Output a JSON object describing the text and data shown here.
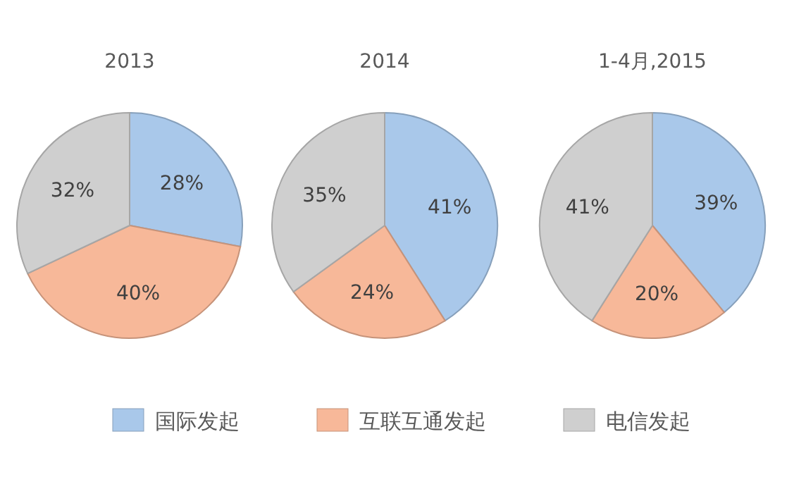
{
  "chart_data": [
    {
      "type": "pie",
      "title": "2013",
      "categories": [
        "国际发起",
        "互联互通发起",
        "电信发起"
      ],
      "values": [
        28,
        40,
        32
      ],
      "value_labels": [
        "28%",
        "40%",
        "32%"
      ],
      "colors": [
        "#a9c8ea",
        "#f7b899",
        "#cfcfcf"
      ],
      "legend": "bottom"
    },
    {
      "type": "pie",
      "title": "2014",
      "categories": [
        null,
        null,
        null
      ],
      "values": [
        41,
        24,
        35
      ],
      "value_labels": [
        "41%",
        "24%",
        "35%"
      ],
      "colors": [
        "#a9c8ea",
        "#f7b899",
        "#cfcfcf"
      ]
    },
    {
      "type": "pie",
      "title": "1-4月,2015",
      "categories": [
        null,
        null,
        null
      ],
      "values": [
        39,
        20,
        41
      ],
      "value_labels": [
        "39%",
        "20%",
        "41%"
      ],
      "colors": [
        "#a9c8ea",
        "#f7b899",
        "#cfcfcf"
      ]
    }
  ]
}
